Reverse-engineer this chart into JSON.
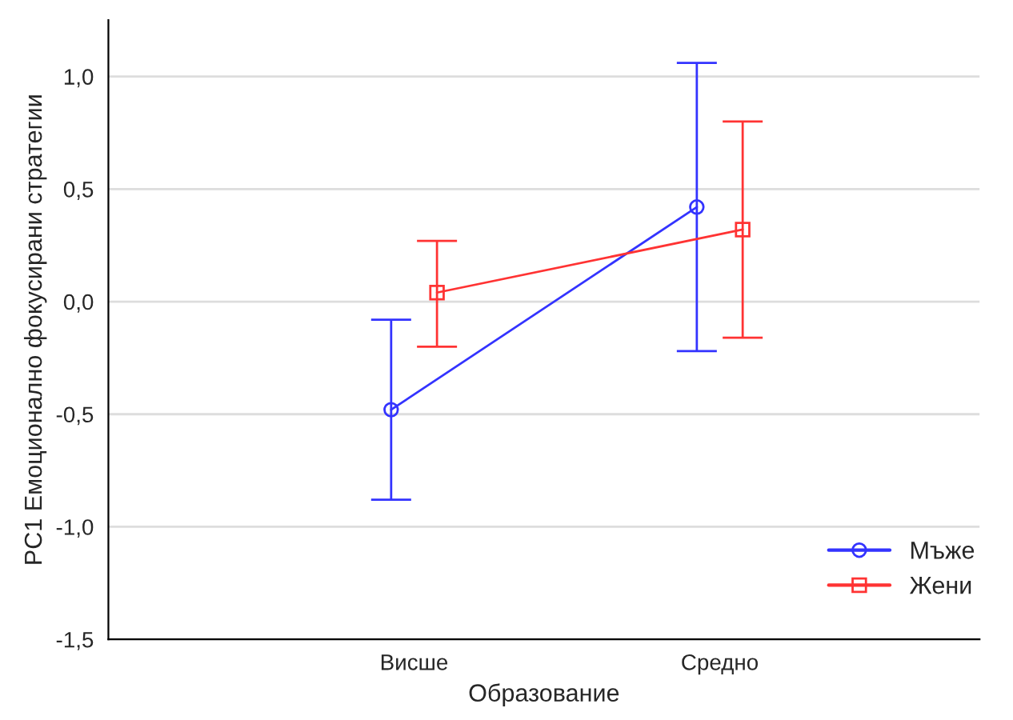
{
  "chart_data": {
    "type": "line",
    "xlabel": "Образование",
    "ylabel": "PC1 Емоционално фокусирани стратегии",
    "categories": [
      "Висше",
      "Средно"
    ],
    "series": [
      {
        "name": "Мъже",
        "color": "#3333ff",
        "marker": "circle",
        "values": [
          -0.48,
          0.42
        ],
        "errors": [
          [
            -0.88,
            -0.08
          ],
          [
            -0.22,
            1.06
          ]
        ]
      },
      {
        "name": "Жени",
        "color": "#ff3333",
        "marker": "square",
        "values": [
          0.04,
          0.32
        ],
        "errors": [
          [
            -0.2,
            0.27
          ],
          [
            -0.16,
            0.8
          ]
        ]
      }
    ],
    "ylim": [
      -1.5,
      1.25
    ],
    "yticks": [
      {
        "value": -1.5,
        "label": "-1,5"
      },
      {
        "value": -1,
        "label": "-1,0"
      },
      {
        "value": -0.5,
        "label": "-0,5"
      },
      {
        "value": 0,
        "label": "0,0"
      },
      {
        "value": 0.5,
        "label": "0,5"
      },
      {
        "value": 1,
        "label": "1,0"
      }
    ],
    "grid": "y",
    "legend": "bottom right",
    "line_style": "solid"
  }
}
